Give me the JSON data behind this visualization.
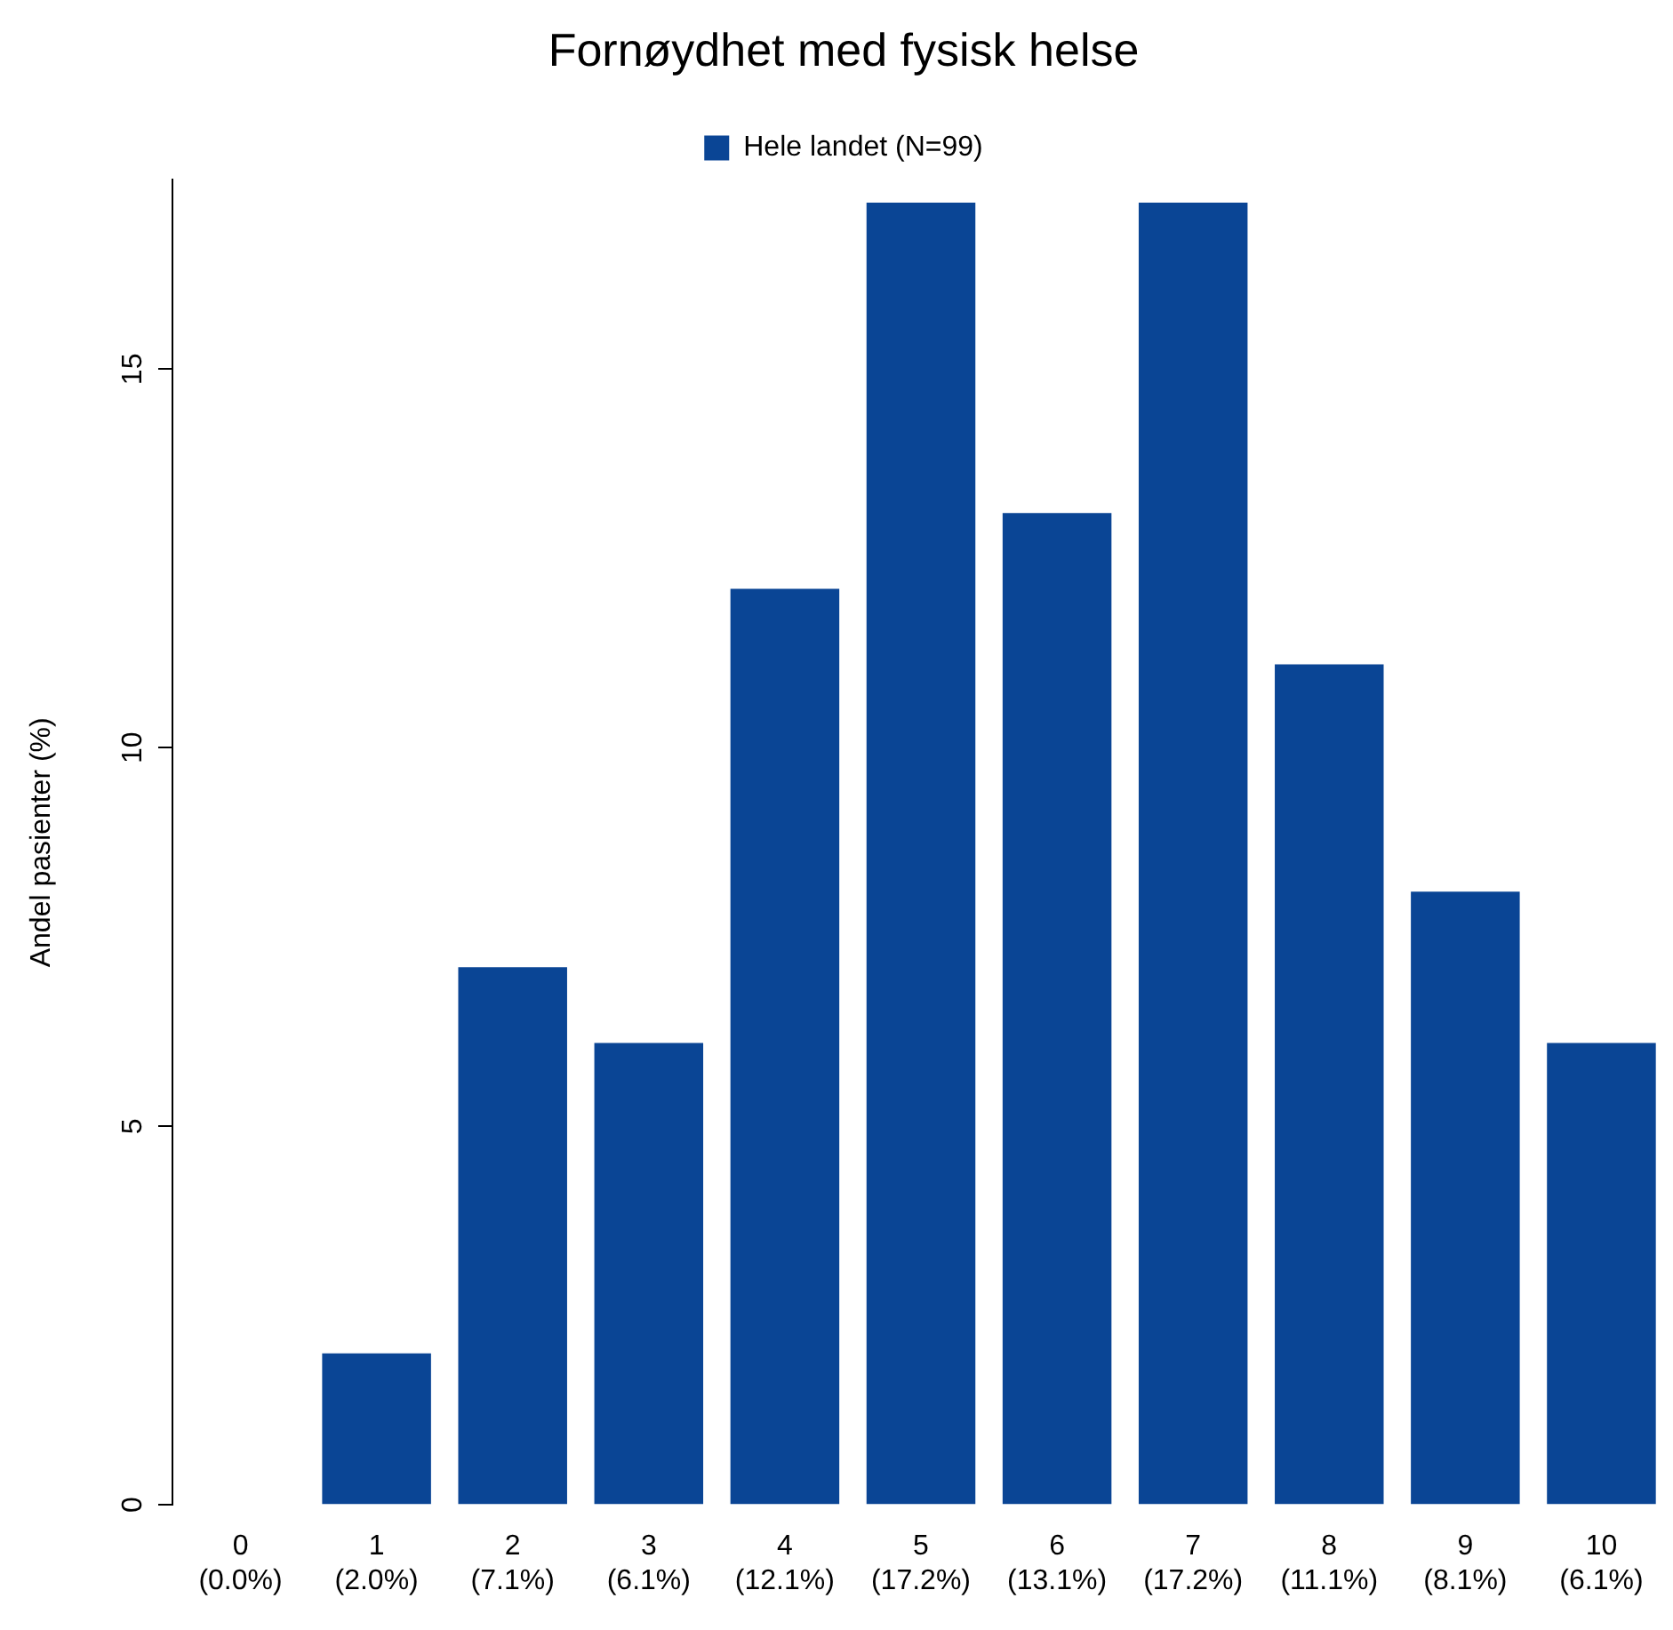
{
  "chart_data": {
    "type": "bar",
    "title": "Fornøydhet med fysisk helse",
    "ylabel": "Andel pasienter (%)",
    "categories": [
      "0\n(0.0%)",
      "1\n(2.0%)",
      "2\n(7.1%)",
      "3\n(6.1%)",
      "4\n(12.1%)",
      "5\n(17.2%)",
      "6\n(13.1%)",
      "7\n(17.2%)",
      "8\n(11.1%)",
      "9\n(8.1%)",
      "10\n(6.1%)"
    ],
    "series": [
      {
        "name": "Hele landet (N=99)",
        "color": "#0a4595",
        "values": [
          0,
          2.0,
          7.1,
          6.1,
          12.1,
          17.2,
          13.1,
          17.2,
          11.1,
          8.1,
          6.1
        ]
      }
    ],
    "ylim": [
      0,
      17.5
    ],
    "yticks": [
      0,
      5,
      10,
      15
    ],
    "grid": false,
    "legend": "top"
  }
}
